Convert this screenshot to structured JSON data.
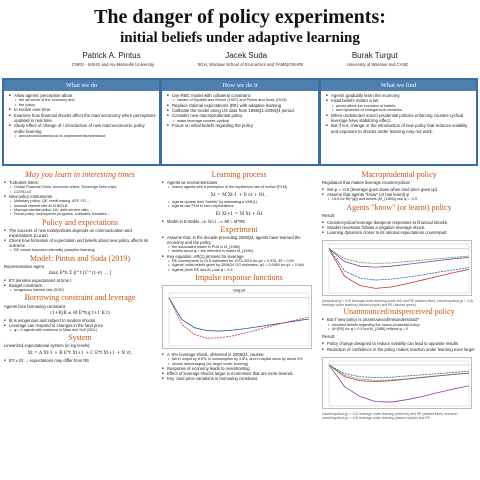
{
  "header": {
    "title": "The danger of policy experiments:",
    "subtitle": "initial beliefs under adaptive learning",
    "authors": [
      "Patrick A. Pintus",
      "Jacek Suda",
      "Burak Turgut"
    ],
    "affiliations": [
      "CNRS - InSHS and Aix-Marseille University",
      "SGH, Warsaw School of Economics and FAME|GRAPE",
      "University of Warsaw and CASE"
    ]
  },
  "top": {
    "what_we_do": {
      "heading": "What we do",
      "items": [
        "Allow agents' perception about",
        "the structure of the economy and",
        "the policy",
        "to evolve over time.",
        "Examine how financial shocks affect the macroeconomy when perceptions updated in real time.",
        "Study effect of change of / introduction of new macroeconomic policy under learning",
        "announced/understood vs unpinned/misunderstood"
      ]
    },
    "how_we_do": {
      "heading": "How we do it",
      "items": [
        "Use RBC model with collateral constraint:",
        "variant of Kiyotaki and Moore (1997) and Pintus and Suda (2019).",
        "Replace rational expectations (RE) with adaptive learning",
        "Calibrate the model using US data from 1986Q1-2008Q4 period.",
        "Consider new macroprudential policy",
        "make leverage counter-cyclical",
        "Focus on initial beliefs regarding the policy"
      ]
    },
    "what_we_find": {
      "heading": "What we find",
      "items": [
        "Agents gradually learn the economy.",
        "Initial beliefs matter a lot!",
        "prices affect the evolution of beliefs,",
        "and dynamics of endogenous variables.",
        "When undetected macro-prudential policies enforcing counter-cyclical leverage have stabilizing effect.",
        "But if not, change or the introduction of new policy that reduces volatility and exposure to shocks under learning may not work."
      ]
    }
  },
  "left": {
    "sec1": "May you learn in interesting times",
    "sec1_items": [
      "Turbulent times:",
      "Global Financial Crisis, economic crises, Sovereign Debt crisis,",
      "COVID-19",
      "New policy instruments",
      "Monetary policy: QE, credit easing, AFF, FG,...",
      "unusual interest rate at ZLB/ELB",
      "Macroprudential policy: LtV, debt service ratio,...",
      "Fiscal policy: employment programs, subsidies, transfers..."
    ],
    "sec2": "Policy and expectations",
    "sec2_items": [
      "The success of new tools/policies depends on communication and expectations (Lucas)",
      "Check how formation of expectation and beliefs about new policy affects its outcome",
      "RE versus bounded rationality (adaptive learning)"
    ],
    "sec3": "Model: Pintus and Suda (2019)",
    "rep_agent": "Representative agent",
    "eq1": "max E*0 Σ β^t [C^(1-σ) ... ]",
    "ex_items": [
      "E*t denotes expectations at time t.",
      "Budget constraint:",
      "exogenous interest rate (SOE)"
    ],
    "sec4": "Borrowing constraint and leverage",
    "bc_text": "Agents face borrowing constraint",
    "eq2": "(1+R)B ≤ θt E*t(q t+1 K t)",
    "bc_items": [
      "θt is exogenous and subject to random shocks",
      "Leverage can respond to changes in the land price",
      "φ = 0 agents with evidence in Mian and Sufi (2011)"
    ],
    "sec5": "System",
    "sys_text": "Linearized expectational system (in log levels):",
    "eq3": "Xt = A Xt-1 + B E*t Xt+1 + C E*t Xt+1 + N vt,",
    "sys_last": "E*t ≠ Et → expectations may differ from RE"
  },
  "middle": {
    "sec1": "Learning process",
    "items1": [
      "Agents as econometricians",
      "Induce agents with a perception of the equilibrium law of motion (PLM)",
      "Agents update their \"beliefs\" by estimating a VAR(1).",
      "Agents use PLM to form expectations"
    ],
    "eq1": "Xt = M Xt-1 + B εt + Ht ,",
    "eq2": "Et Xt+1 = M̂ Xt + H̃t",
    "model_line": "Model in E-stable, i.e. lim t→∞ Mt = M^RE",
    "sec2": "Experiment",
    "items2": [
      "Assume that, in the decade preceding 2008Q4, agents have learned the economy and the policy",
      "the associated matrix in PLM is M_{1986}",
      "beliefs about φ = are reflected in matrix M_{1996}",
      "Key equation: AR(1) process for leverage",
      "RE counterparts to OLS estimates for 1975-2010 for φ0 = 0.976, ϑ0 = 0.99",
      "Agents' initial beliefs given by 2008Q4 OG estimates, φ1 = 0.9964 for φ1 = 0.064",
      "Agents (both RE and AL) use φ = 0.5"
    ],
    "sec3": "Impulse response functions",
    "items3": [
      "A -5% leverage shock, observed in 2008Q4, causes:",
      "fall in output by 8.5%, in consumption by 3.8%, and in capital stock by about 3%",
      "severe deleveraging (for larger under learning)",
      "Response of economy leads to overshooting.",
      "Effect of leverage shocks larger in economies that are more levered.",
      "Key: land price variations in borrowing constraint."
    ],
    "chart_data": {
      "type": "line",
      "title": "Output",
      "series": [
        {
          "name": "RE",
          "values": [
            0,
            -4.5,
            -6.2,
            -6.8,
            -6.9,
            -6.7,
            -6.4,
            -6.0,
            -5.6,
            -5.2,
            -4.8,
            -4.4
          ]
        },
        {
          "name": "AL",
          "values": [
            0,
            -5.5,
            -7.6,
            -8.4,
            -8.3,
            -7.9,
            -7.3,
            -6.6,
            -5.9,
            -5.2,
            -4.6,
            -4.0
          ]
        }
      ],
      "ylim": [
        -10,
        1
      ],
      "colors": [
        "#2a59a6",
        "#c93535"
      ]
    }
  },
  "right": {
    "sec1": "Macroprudential policy",
    "reg_text": "Regulation that makes leverage countercyclical",
    "reg_items": [
      "Set φ = -0.5 (leverage goes down when land price goes up).",
      "Assume that agents \"know\" (or has learnt) φ",
      "OLS for M̂(^{φ}) and beliefs (M_{1986}) use φ = -0.5"
    ],
    "sec2": "Agents \"know\" (or learnt) policy",
    "result_label": "Result:",
    "items2": [
      "Countercyclical leverage dampens responses to financial shocks.",
      "Smaller recession follows a negative leverage shock.",
      "Learning dynamics closer to its rational expectations counterpart."
    ],
    "caption1": "procyclical (φ = 0.5) leverage under learning (solid red) and RE (dashed blue); countercyclical (φ = -0.5) leverage under learning (dashed purple) and RE (dashed green)",
    "sec3": "Unannounced/misperceived policy",
    "items3": [
      "But if new policy is unannounced/misunderstood?",
      "incorrect beliefs regarding the macro-prudential policy",
      "M^{RE} for φ = 0.5 but M_{1986} reflects φ = 0",
      "Result:",
      "Policy change designed to reduce volatility can lead to opposite results",
      "Reduction of confidence in the policy makes reaction under learning even larger"
    ],
    "caption2": "countercyclical (φ = -0.5) leverage under learning (solid red) and RE (dashed blue); unknown countercyclical (φ = -0.5) leverage under learning (dashed purple) and RE",
    "chart_data": {
      "type": "line",
      "series": [
        {
          "name": "procyclical AL",
          "values": [
            0,
            -6,
            -8,
            -8.6,
            -8.3,
            -7.6,
            -6.8,
            -6.0,
            -5.2,
            -4.5
          ]
        },
        {
          "name": "procyclical RE",
          "values": [
            0,
            -4.8,
            -6.4,
            -6.8,
            -6.6,
            -6.2,
            -5.7,
            -5.1,
            -4.6,
            -4.1
          ]
        },
        {
          "name": "countercyclical AL",
          "values": [
            0,
            -2.8,
            -3.8,
            -4.0,
            -3.8,
            -3.4,
            -3.0,
            -2.6,
            -2.2,
            -1.9
          ]
        },
        {
          "name": "countercyclical RE",
          "values": [
            0,
            -2.2,
            -3.0,
            -3.2,
            -3.1,
            -2.8,
            -2.5,
            -2.2,
            -1.9,
            -1.6
          ]
        }
      ],
      "colors": [
        "#c93535",
        "#2a59a6",
        "#8a3fa4",
        "#3f9a4a"
      ]
    },
    "chart_data_2": {
      "type": "line",
      "series": [
        {
          "name": "countercyclical AL",
          "values": [
            0,
            -3,
            -4,
            -4.2,
            -4,
            -3.6,
            -3.2,
            -2.8,
            -2.4,
            -2.1
          ]
        },
        {
          "name": "countercyclical RE",
          "values": [
            0,
            -2.2,
            -3,
            -3.2,
            -3.1,
            -2.8,
            -2.5,
            -2.2,
            -1.9,
            -1.6
          ]
        },
        {
          "name": "unknown AL",
          "values": [
            0,
            -5.5,
            -8,
            -9.3,
            -9.4,
            -8.8,
            -8,
            -7,
            -6.1,
            -5.3
          ]
        },
        {
          "name": "unknown RE",
          "values": [
            0,
            -2.6,
            -3.6,
            -3.9,
            -3.8,
            -3.5,
            -3.1,
            -2.7,
            -2.4,
            -2.1
          ]
        }
      ],
      "colors": [
        "#c93535",
        "#2a59a6",
        "#8a3fa4",
        "#3f9a4a"
      ]
    }
  }
}
